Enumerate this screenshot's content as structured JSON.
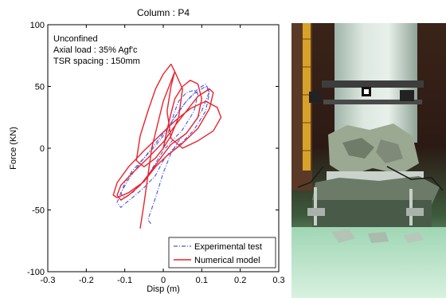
{
  "chart_data": {
    "type": "line",
    "title": "Column : P4",
    "xlabel": "Disp (m)",
    "ylabel": "Force (KN)",
    "xlim": [
      -0.3,
      0.3
    ],
    "ylim": [
      -100,
      100
    ],
    "xticks": [
      -0.3,
      -0.2,
      -0.1,
      0,
      0.1,
      0.2,
      0.3
    ],
    "yticks": [
      -100,
      -50,
      0,
      50,
      100
    ],
    "xtick_labels": [
      "-0.3",
      "-0.2",
      "-0.1",
      "0",
      "0.1",
      "0.2",
      "0.3"
    ],
    "ytick_labels": [
      "-100",
      "-50",
      "0",
      "50",
      "100"
    ],
    "grid": false,
    "legend_position": "lower-right",
    "annotations": [
      "Unconfined",
      "Axial load : 35% Agf'c",
      "TSR spacing : 150mm"
    ],
    "series": [
      {
        "name": "Experimental test",
        "color": "#4a57d8",
        "style": "dash-dot",
        "x": [
          0,
          0.01,
          0.02,
          0.03,
          0.04,
          0.06,
          0.08,
          0.09,
          0.08,
          0.05,
          0.02,
          0,
          -0.02,
          -0.04,
          -0.06,
          -0.08,
          -0.1,
          -0.11,
          -0.1,
          -0.08,
          -0.05,
          -0.02,
          0,
          0.02,
          0.04,
          0.06,
          0.08,
          0.1,
          0.11,
          0.12,
          0.11,
          0.08,
          0.05,
          0.02,
          0,
          -0.02,
          -0.05,
          -0.08,
          -0.1,
          -0.11,
          -0.12,
          -0.11,
          -0.09,
          -0.06,
          -0.03,
          0,
          0.03,
          0.06,
          0.09,
          0.11,
          0.12,
          0.1,
          0.07,
          0.04,
          0.02,
          0,
          -0.02,
          -0.04,
          -0.03
        ],
        "y": [
          0,
          10,
          20,
          30,
          38,
          45,
          47,
          44,
          30,
          15,
          5,
          -2,
          -12,
          -22,
          -30,
          -36,
          -40,
          -37,
          -28,
          -18,
          -8,
          2,
          10,
          20,
          30,
          38,
          44,
          48,
          50,
          45,
          30,
          15,
          5,
          -2,
          -10,
          -22,
          -32,
          -40,
          -45,
          -48,
          -44,
          -36,
          -25,
          -12,
          0,
          12,
          25,
          38,
          48,
          52,
          46,
          30,
          16,
          6,
          -4,
          -20,
          -40,
          -58,
          -62
        ]
      },
      {
        "name": "Numerical model",
        "color": "#e8232d",
        "style": "solid",
        "x": [
          0,
          0.01,
          0.02,
          0.03,
          0.05,
          0.07,
          0.09,
          0.1,
          0.09,
          0.06,
          0.02,
          0,
          -0.03,
          -0.06,
          -0.09,
          -0.11,
          -0.12,
          -0.11,
          -0.08,
          -0.04,
          0,
          0.03,
          0.06,
          0.09,
          0.12,
          0.13,
          0.12,
          0.09,
          0.05,
          0.01,
          -0.02,
          -0.05,
          -0.09,
          -0.12,
          -0.13,
          -0.12,
          -0.09,
          -0.05,
          -0.01,
          0.03,
          0.07,
          0.11,
          0.14,
          0.15,
          0.13,
          0.09,
          0.05,
          0.02,
          0.01,
          0.02,
          0.03,
          0.02,
          0,
          -0.02,
          -0.04,
          -0.06,
          -0.07,
          -0.05,
          -0.02,
          0,
          0.02,
          0.04,
          0.05,
          0.03,
          0,
          -0.03,
          -0.05,
          -0.06
        ],
        "y": [
          0,
          15,
          28,
          40,
          50,
          55,
          52,
          40,
          25,
          12,
          3,
          -5,
          -18,
          -30,
          -38,
          -42,
          -38,
          -30,
          -20,
          -8,
          5,
          18,
          30,
          42,
          48,
          45,
          32,
          16,
          4,
          -6,
          -15,
          -27,
          -36,
          -40,
          -38,
          -28,
          -15,
          -2,
          10,
          22,
          32,
          38,
          33,
          25,
          14,
          6,
          0,
          8,
          30,
          50,
          62,
          68,
          60,
          48,
          30,
          10,
          -10,
          -15,
          -8,
          0,
          10,
          25,
          48,
          62,
          38,
          0,
          -45,
          -65
        ]
      }
    ]
  }
}
